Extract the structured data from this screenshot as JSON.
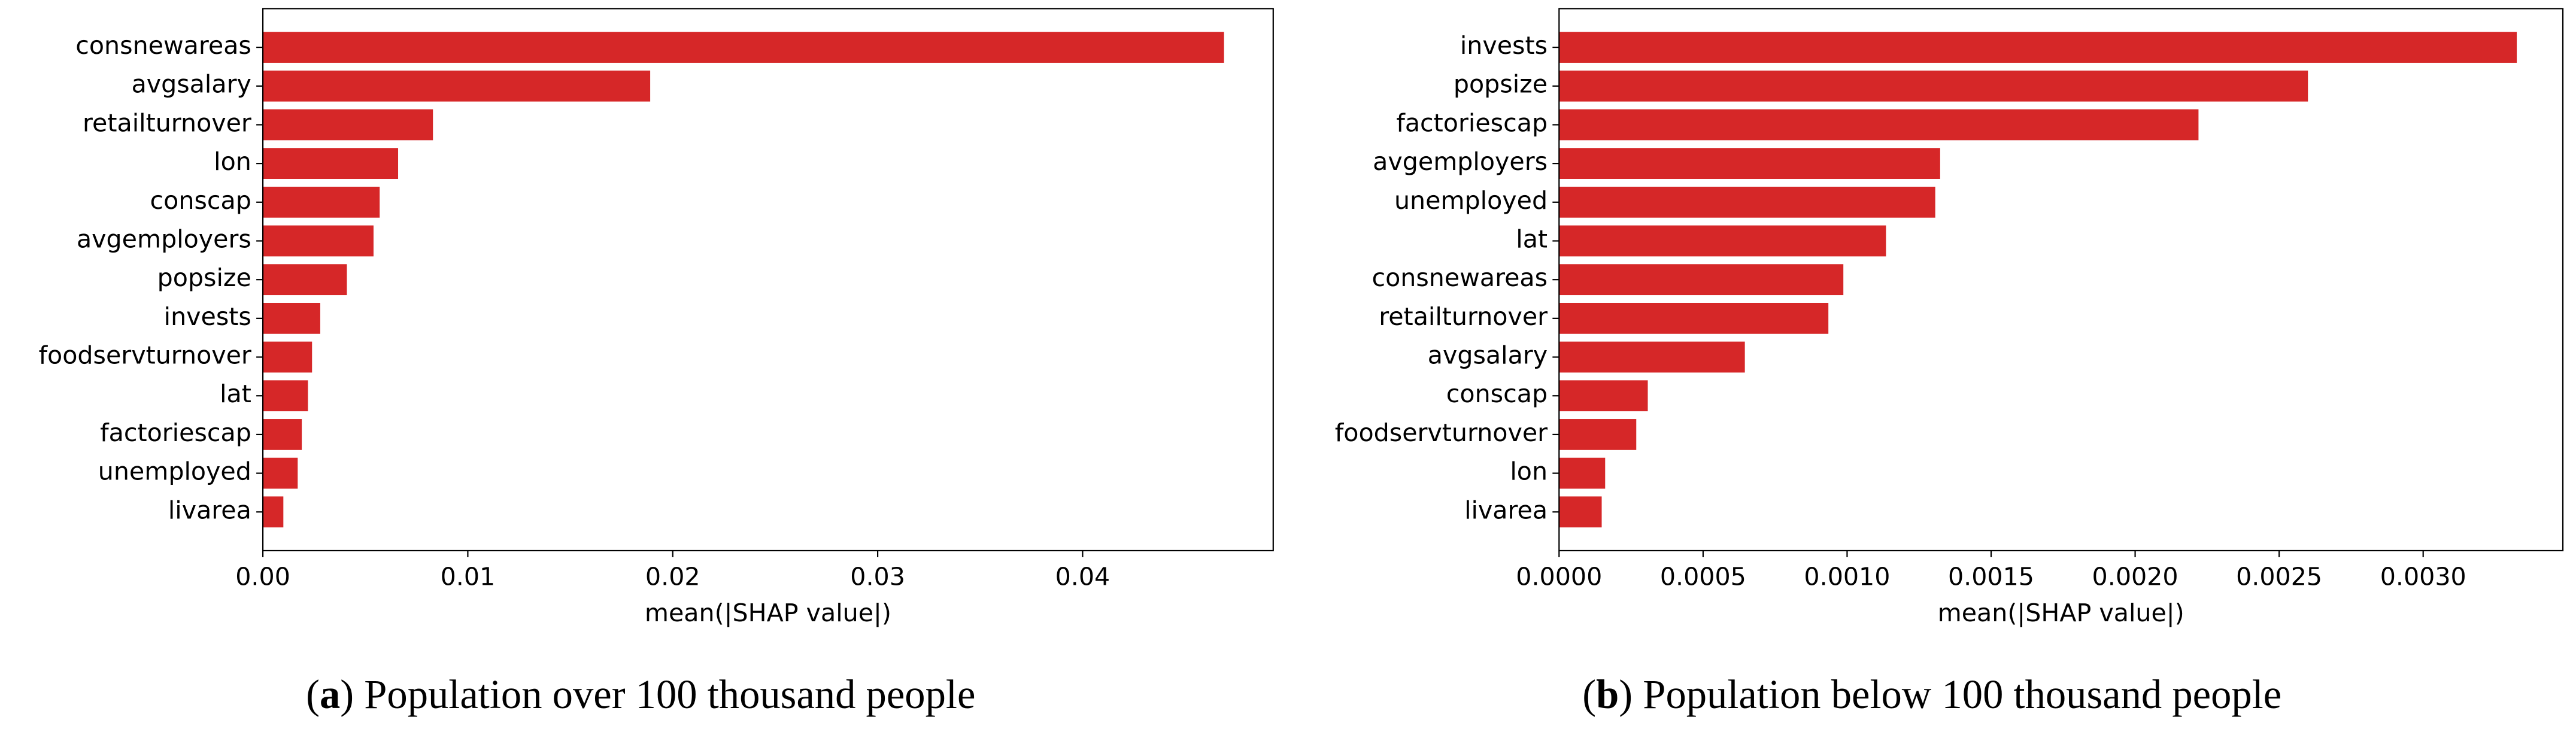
{
  "chart_data": [
    {
      "type": "barh",
      "caption": {
        "label": "a",
        "text": "Population over 100 thousand people"
      },
      "x_label": "mean(|SHAP value|)",
      "color": "#d62728",
      "categories": [
        "consnewareas",
        "avgsalary",
        "retailturnover",
        "lon",
        "conscap",
        "avgemployers",
        "popsize",
        "invests",
        "foodservturnover",
        "lat",
        "factoriescap",
        "unemployed",
        "livarea"
      ],
      "values": [
        0.0469,
        0.0189,
        0.0083,
        0.0066,
        0.0057,
        0.0054,
        0.0041,
        0.0028,
        0.0024,
        0.0022,
        0.0019,
        0.0017,
        0.001
      ],
      "xlim": [
        0,
        0.0493
      ],
      "xticks": [
        {
          "value": 0,
          "label": "0.00"
        },
        0.01,
        0.02,
        0.03,
        0.04
      ]
    },
    {
      "type": "barh",
      "caption": {
        "label": "b",
        "text": "Population below 100 thousand people"
      },
      "x_label": "mean(|SHAP value|)",
      "color": "#d62728",
      "categories": [
        "invests",
        "popsize",
        "factoriescap",
        "avgemployers",
        "unemployed",
        "lat",
        "consnewareas",
        "retailturnover",
        "avgsalary",
        "conscap",
        "foodservturnover",
        "lon",
        "livarea"
      ],
      "values": [
        0.003325,
        0.0026,
        0.00222,
        0.001323,
        0.001306,
        0.001135,
        0.000987,
        0.000935,
        0.000645,
        0.000308,
        0.000268,
        0.00016,
        0.000148
      ],
      "xlim": [
        0,
        0.003485
      ],
      "xticks": [
        {
          "value": 0,
          "label": "0.0000"
        },
        0.0005,
        {
          "value": 0.001,
          "label": "0.0010"
        },
        0.0015,
        {
          "value": 0.002,
          "label": "0.0020"
        },
        0.0025,
        {
          "value": 0.003,
          "label": "0.0030"
        }
      ]
    }
  ]
}
